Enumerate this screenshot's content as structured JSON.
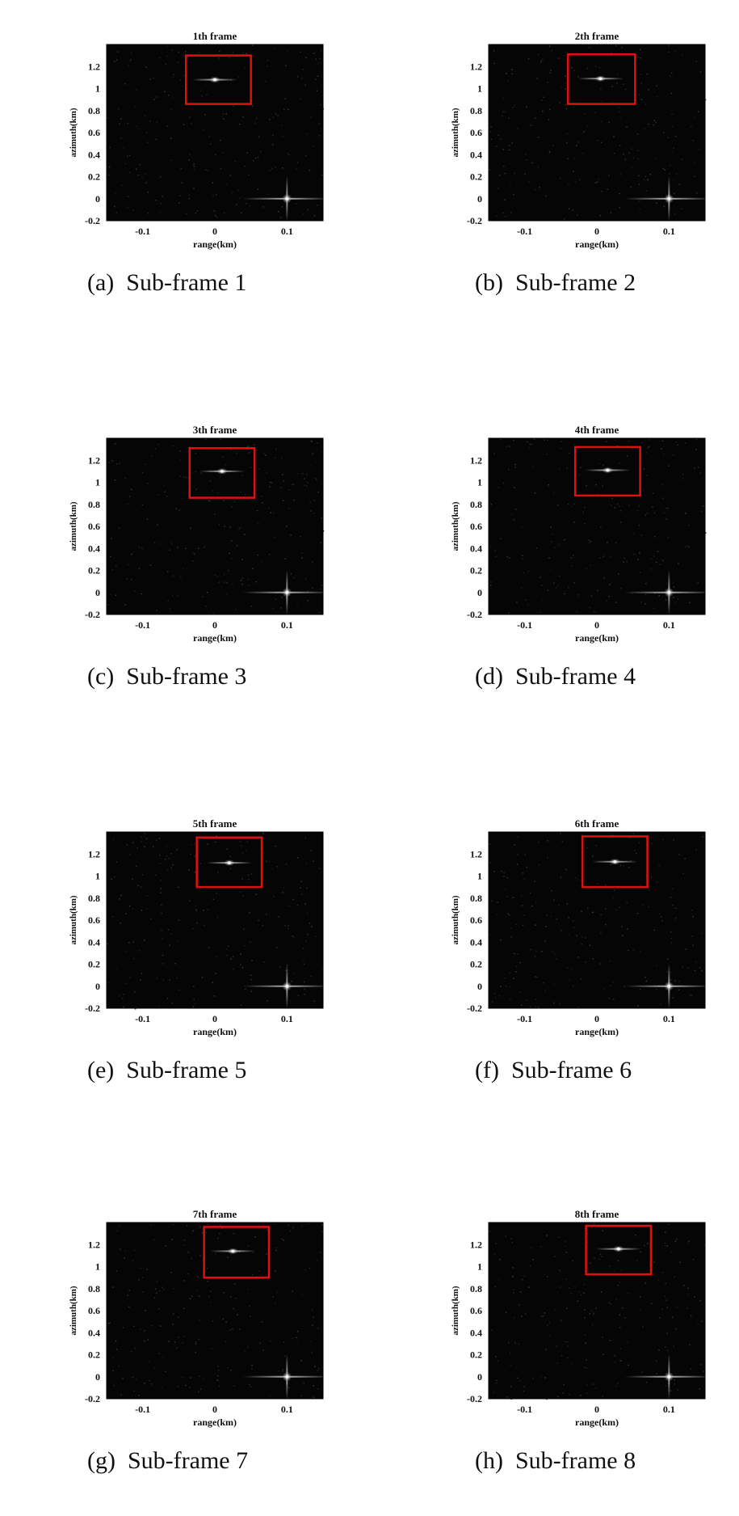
{
  "figure": {
    "panels": [
      {
        "label": "(a)",
        "caption": "Sub-frame 1"
      },
      {
        "label": "(b)",
        "caption": "Sub-frame 2"
      },
      {
        "label": "(c)",
        "caption": "Sub-frame 3"
      },
      {
        "label": "(d)",
        "caption": "Sub-frame 4"
      },
      {
        "label": "(e)",
        "caption": "Sub-frame 5"
      },
      {
        "label": "(f)",
        "caption": "Sub-frame 6"
      },
      {
        "label": "(g)",
        "caption": "Sub-frame 7"
      },
      {
        "label": "(h)",
        "caption": "Sub-frame 8"
      }
    ]
  },
  "chart_data": [
    {
      "type": "heatmap",
      "title": "1th frame",
      "xlabel": "range(km)",
      "ylabel": "azimuth(km)",
      "xlim": [
        -0.15,
        0.15
      ],
      "ylim": [
        -0.2,
        1.4
      ],
      "x_ticks": [
        "-0.1",
        "0",
        "0.1"
      ],
      "x_tick_values": [
        -0.1,
        0,
        0.1
      ],
      "y_ticks": [
        "-0.2",
        "0",
        "0.2",
        "0.4",
        "0.6",
        "0.8",
        "1",
        "1.2"
      ],
      "y_tick_values": [
        -0.2,
        0,
        0.2,
        0.4,
        0.6,
        0.8,
        1,
        1.2
      ],
      "background": "#050505",
      "box_color": "#e01010",
      "targets": [
        {
          "x": 0.0,
          "y": 1.08
        },
        {
          "x": 0.1,
          "y": 0.0
        }
      ],
      "box": {
        "x": [
          -0.04,
          0.05
        ],
        "y": [
          0.86,
          1.3
        ]
      }
    },
    {
      "type": "heatmap",
      "title": "2th frame",
      "xlabel": "range(km)",
      "ylabel": "azimuth(km)",
      "xlim": [
        -0.15,
        0.15
      ],
      "ylim": [
        -0.2,
        1.4
      ],
      "x_ticks": [
        "-0.1",
        "0",
        "0.1"
      ],
      "x_tick_values": [
        -0.1,
        0,
        0.1
      ],
      "y_ticks": [
        "-0.2",
        "0",
        "0.2",
        "0.4",
        "0.6",
        "0.8",
        "1",
        "1.2"
      ],
      "y_tick_values": [
        -0.2,
        0,
        0.2,
        0.4,
        0.6,
        0.8,
        1,
        1.2
      ],
      "background": "#050505",
      "box_color": "#e01010",
      "targets": [
        {
          "x": 0.005,
          "y": 1.09
        },
        {
          "x": 0.1,
          "y": 0.0
        }
      ],
      "box": {
        "x": [
          -0.04,
          0.053
        ],
        "y": [
          0.86,
          1.31
        ]
      }
    },
    {
      "type": "heatmap",
      "title": "3th frame",
      "xlabel": "range(km)",
      "ylabel": "azimuth(km)",
      "xlim": [
        -0.15,
        0.15
      ],
      "ylim": [
        -0.2,
        1.4
      ],
      "x_ticks": [
        "-0.1",
        "0",
        "0.1"
      ],
      "x_tick_values": [
        -0.1,
        0,
        0.1
      ],
      "y_ticks": [
        "-0.2",
        "0",
        "0.2",
        "0.4",
        "0.6",
        "0.8",
        "1",
        "1.2"
      ],
      "y_tick_values": [
        -0.2,
        0,
        0.2,
        0.4,
        0.6,
        0.8,
        1,
        1.2
      ],
      "background": "#050505",
      "box_color": "#e01010",
      "targets": [
        {
          "x": 0.01,
          "y": 1.1
        },
        {
          "x": 0.1,
          "y": 0.0
        }
      ],
      "box": {
        "x": [
          -0.035,
          0.055
        ],
        "y": [
          0.86,
          1.31
        ]
      }
    },
    {
      "type": "heatmap",
      "title": "4th frame",
      "xlabel": "range(km)",
      "ylabel": "azimuth(km)",
      "xlim": [
        -0.15,
        0.15
      ],
      "ylim": [
        -0.2,
        1.4
      ],
      "x_ticks": [
        "-0.1",
        "0",
        "0.1"
      ],
      "x_tick_values": [
        -0.1,
        0,
        0.1
      ],
      "y_ticks": [
        "-0.2",
        "0",
        "0.2",
        "0.4",
        "0.6",
        "0.8",
        "1",
        "1.2"
      ],
      "y_tick_values": [
        -0.2,
        0,
        0.2,
        0.4,
        0.6,
        0.8,
        1,
        1.2
      ],
      "background": "#050505",
      "box_color": "#e01010",
      "targets": [
        {
          "x": 0.015,
          "y": 1.11
        },
        {
          "x": 0.1,
          "y": 0.0
        }
      ],
      "box": {
        "x": [
          -0.03,
          0.06
        ],
        "y": [
          0.88,
          1.32
        ]
      }
    },
    {
      "type": "heatmap",
      "title": "5th frame",
      "xlabel": "range(km)",
      "ylabel": "azimuth(km)",
      "xlim": [
        -0.15,
        0.15
      ],
      "ylim": [
        -0.2,
        1.4
      ],
      "x_ticks": [
        "-0.1",
        "0",
        "0.1"
      ],
      "x_tick_values": [
        -0.1,
        0,
        0.1
      ],
      "y_ticks": [
        "-0.2",
        "0",
        "0.2",
        "0.4",
        "0.6",
        "0.8",
        "1",
        "1.2"
      ],
      "y_tick_values": [
        -0.2,
        0,
        0.2,
        0.4,
        0.6,
        0.8,
        1,
        1.2
      ],
      "background": "#050505",
      "box_color": "#e01010",
      "targets": [
        {
          "x": 0.02,
          "y": 1.12
        },
        {
          "x": 0.1,
          "y": 0.0
        }
      ],
      "box": {
        "x": [
          -0.025,
          0.065
        ],
        "y": [
          0.9,
          1.35
        ]
      }
    },
    {
      "type": "heatmap",
      "title": "6th frame",
      "xlabel": "range(km)",
      "ylabel": "azimuth(km)",
      "xlim": [
        -0.15,
        0.15
      ],
      "ylim": [
        -0.2,
        1.4
      ],
      "x_ticks": [
        "-0.1",
        "0",
        "0.1"
      ],
      "x_tick_values": [
        -0.1,
        0,
        0.1
      ],
      "y_ticks": [
        "-0.2",
        "0",
        "0.2",
        "0.4",
        "0.6",
        "0.8",
        "1",
        "1.2"
      ],
      "y_tick_values": [
        -0.2,
        0,
        0.2,
        0.4,
        0.6,
        0.8,
        1,
        1.2
      ],
      "background": "#050505",
      "box_color": "#e01010",
      "targets": [
        {
          "x": 0.025,
          "y": 1.13
        },
        {
          "x": 0.1,
          "y": 0.0
        }
      ],
      "box": {
        "x": [
          -0.02,
          0.07
        ],
        "y": [
          0.9,
          1.36
        ]
      }
    },
    {
      "type": "heatmap",
      "title": "7th frame",
      "xlabel": "range(km)",
      "ylabel": "azimuth(km)",
      "xlim": [
        -0.15,
        0.15
      ],
      "ylim": [
        -0.2,
        1.4
      ],
      "x_ticks": [
        "-0.1",
        "0",
        "0.1"
      ],
      "x_tick_values": [
        -0.1,
        0,
        0.1
      ],
      "y_ticks": [
        "-0.2",
        "0",
        "0.2",
        "0.4",
        "0.6",
        "0.8",
        "1",
        "1.2"
      ],
      "y_tick_values": [
        -0.2,
        0,
        0.2,
        0.4,
        0.6,
        0.8,
        1,
        1.2
      ],
      "background": "#050505",
      "box_color": "#e01010",
      "targets": [
        {
          "x": 0.025,
          "y": 1.14
        },
        {
          "x": 0.1,
          "y": 0.0
        }
      ],
      "box": {
        "x": [
          -0.015,
          0.075
        ],
        "y": [
          0.9,
          1.36
        ]
      }
    },
    {
      "type": "heatmap",
      "title": "8th frame",
      "xlabel": "range(km)",
      "ylabel": "azimuth(km)",
      "xlim": [
        -0.15,
        0.15
      ],
      "ylim": [
        -0.2,
        1.4
      ],
      "x_ticks": [
        "-0.1",
        "0",
        "0.1"
      ],
      "x_tick_values": [
        -0.1,
        0,
        0.1
      ],
      "y_ticks": [
        "-0.2",
        "0",
        "0.2",
        "0.4",
        "0.6",
        "0.8",
        "1",
        "1.2"
      ],
      "y_tick_values": [
        -0.2,
        0,
        0.2,
        0.4,
        0.6,
        0.8,
        1,
        1.2
      ],
      "background": "#050505",
      "box_color": "#e01010",
      "targets": [
        {
          "x": 0.03,
          "y": 1.16
        },
        {
          "x": 0.1,
          "y": 0.0
        }
      ],
      "box": {
        "x": [
          -0.015,
          0.075
        ],
        "y": [
          0.93,
          1.37
        ]
      }
    }
  ]
}
